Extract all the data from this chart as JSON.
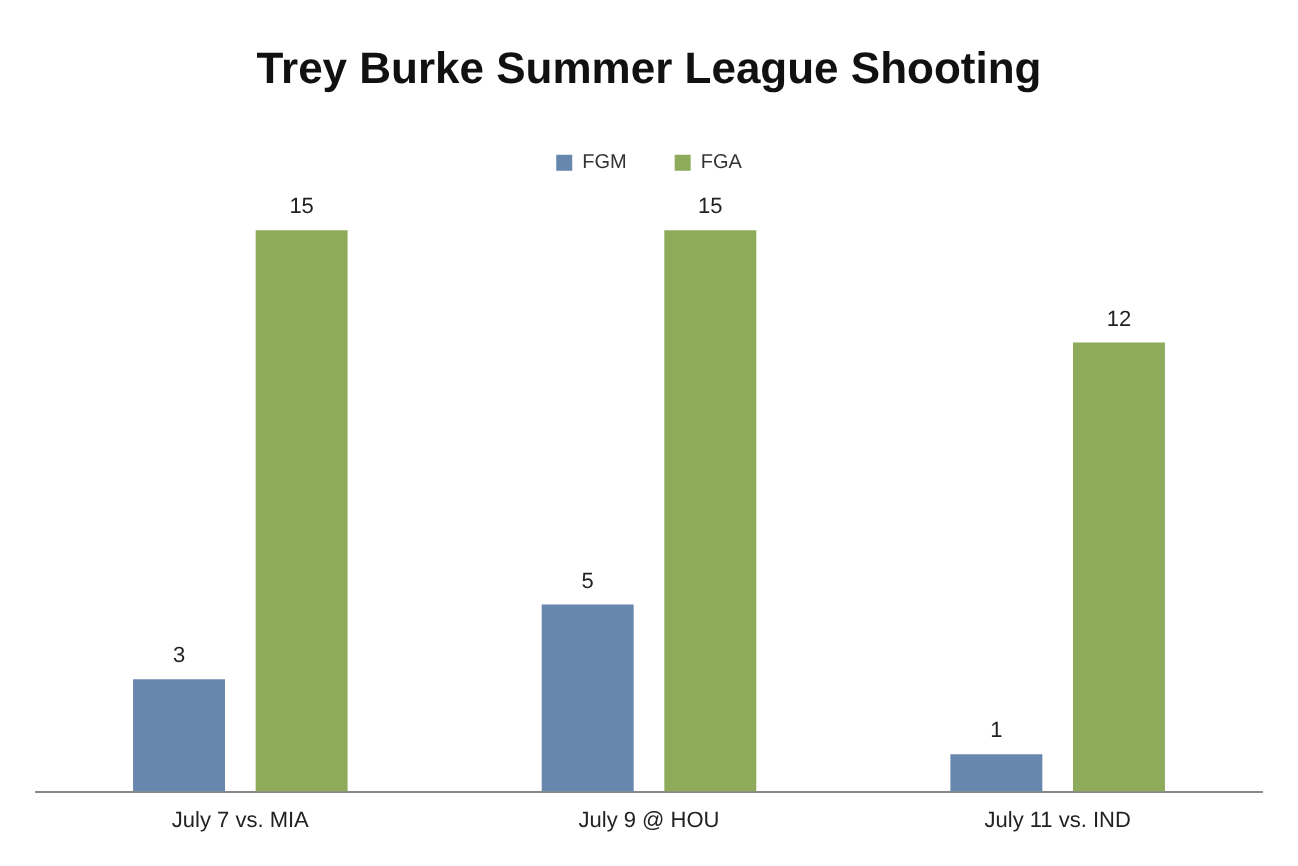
{
  "chart_data": {
    "type": "bar",
    "title": "Trey Burke Summer League Shooting",
    "categories": [
      "July 7 vs. MIA",
      "July 9 @ HOU",
      "July 11 vs. IND"
    ],
    "series": [
      {
        "name": "FGM",
        "color": "#6787ae",
        "values": [
          3,
          5,
          1
        ]
      },
      {
        "name": "FGA",
        "color": "#8eaa5b",
        "values": [
          15,
          15,
          12
        ]
      }
    ],
    "data_labels": true,
    "legend": "top",
    "grid": false
  }
}
